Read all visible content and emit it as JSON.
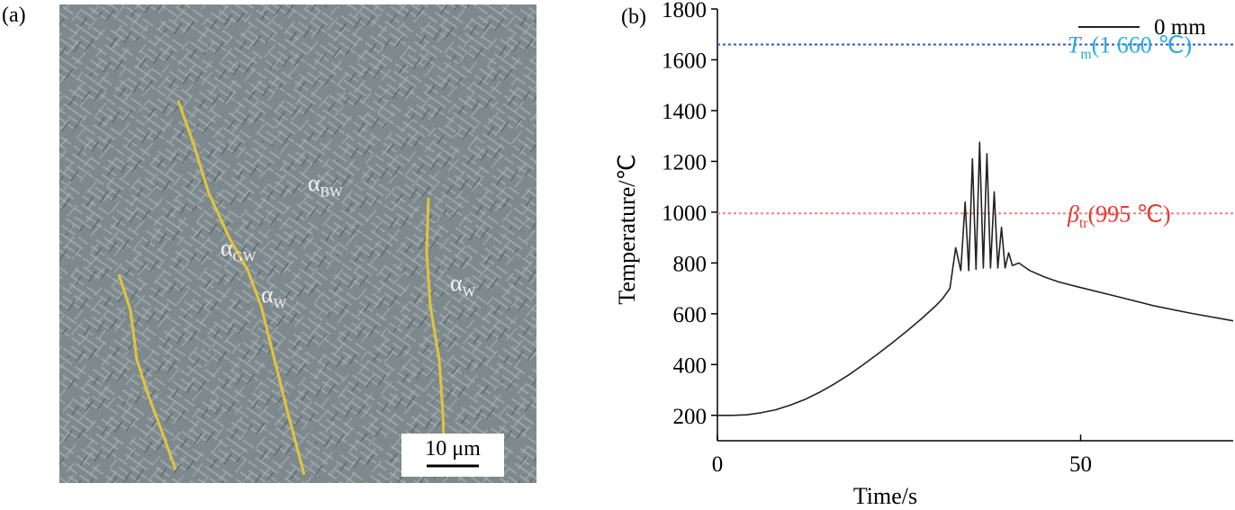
{
  "panel_a": {
    "panel_label": "(a)",
    "phase_labels": [
      {
        "symbol": "α",
        "sub": "BW"
      },
      {
        "symbol": "α",
        "sub": "GW"
      },
      {
        "symbol": "α",
        "sub": "W"
      },
      {
        "symbol": "α",
        "sub": "W"
      }
    ],
    "scale_bar": "10 μm"
  },
  "chart_data": {
    "type": "line",
    "panel_label": "(b)",
    "x_label": "Time/s",
    "y_label": "Temperature/℃",
    "xlim": [
      0,
      71
    ],
    "xticks": [
      0,
      50
    ],
    "ylim": [
      100,
      1800
    ],
    "yticks": [
      200,
      400,
      600,
      800,
      1000,
      1200,
      1400,
      1600,
      1800
    ],
    "series": [
      {
        "name": "0 mm",
        "color": "#222222",
        "x": [
          0,
          2,
          4,
          6,
          8,
          10,
          12,
          14,
          16,
          18,
          20,
          22,
          24,
          26,
          28,
          30,
          31,
          32,
          32.8,
          33.5,
          34.1,
          34.6,
          35.1,
          35.6,
          36.1,
          36.6,
          37.1,
          37.6,
          38.1,
          38.6,
          39.1,
          39.6,
          40.1,
          40.6,
          41.5,
          43,
          45,
          47,
          50,
          55,
          60,
          65,
          71
        ],
        "values": [
          200,
          200,
          202,
          210,
          222,
          240,
          262,
          290,
          322,
          358,
          398,
          440,
          484,
          530,
          578,
          630,
          660,
          700,
          860,
          770,
          1040,
          770,
          1210,
          775,
          1275,
          780,
          1230,
          780,
          1080,
          780,
          940,
          780,
          840,
          790,
          800,
          770,
          745,
          725,
          703,
          668,
          632,
          603,
          572
        ]
      }
    ],
    "reference_lines": [
      {
        "value": 1660,
        "symbol": "T",
        "sub": "m",
        "text": "(1 660 ℃)",
        "color": "#3355cc",
        "label_color": "#29a9e0"
      },
      {
        "value": 995,
        "symbol": "β",
        "sub": "tr",
        "text": "(995 ℃)",
        "color": "#f08080",
        "label_color": "#e8382f"
      }
    ],
    "legend_position": "upper right"
  }
}
